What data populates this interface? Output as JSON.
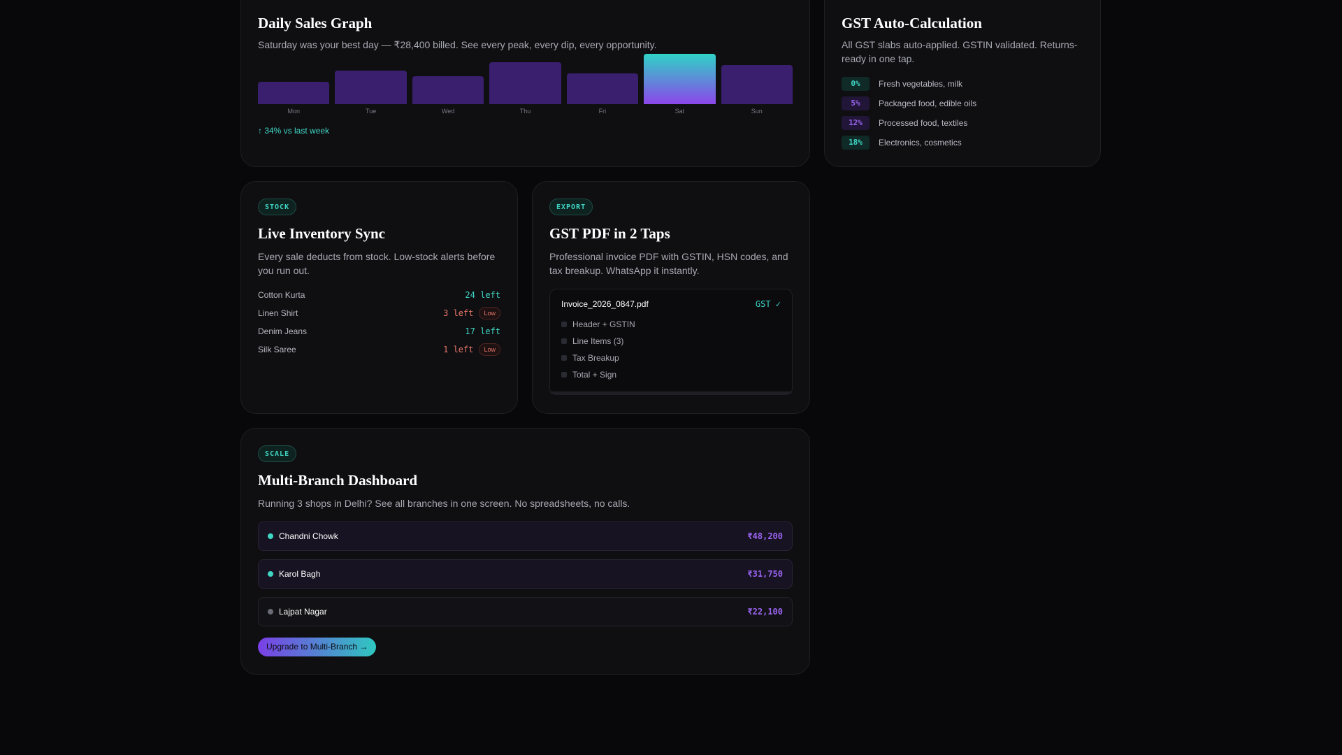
{
  "sales": {
    "title": "Daily Sales Graph",
    "description": "Saturday was your best day — ₹28,400 billed. See every peak, every dip, every opportunity.",
    "trend": "↑ 34% vs last week",
    "chart_data": {
      "type": "bar",
      "categories": [
        "Mon",
        "Tue",
        "Wed",
        "Thu",
        "Fri",
        "Sat",
        "Sun"
      ],
      "values": [
        32,
        48,
        40,
        60,
        44,
        72,
        56
      ],
      "highlight": "Sat"
    }
  },
  "gst": {
    "title": "GST Auto-Calculation",
    "description": "All GST slabs auto-applied. GSTIN validated. Returns-ready in one tap.",
    "slabs": [
      {
        "pct": "0%",
        "label": "Fresh vegetables, milk"
      },
      {
        "pct": "5%",
        "label": "Packaged food, edible oils"
      },
      {
        "pct": "12%",
        "label": "Processed food, textiles"
      },
      {
        "pct": "18%",
        "label": "Electronics, cosmetics"
      }
    ]
  },
  "inventory": {
    "tag": "STOCK",
    "title": "Live Inventory Sync",
    "description": "Every sale deducts from stock. Low-stock alerts before you run out.",
    "low_label": "Low",
    "items": [
      {
        "name": "Cotton Kurta",
        "qty": "24 left"
      },
      {
        "name": "Linen Shirt",
        "qty": "3 left"
      },
      {
        "name": "Denim Jeans",
        "qty": "17 left"
      },
      {
        "name": "Silk Saree",
        "qty": "1 left"
      }
    ]
  },
  "export": {
    "tag": "EXPORT",
    "title": "GST PDF in 2 Taps",
    "description": "Professional invoice PDF with GSTIN, HSN codes, and tax breakup. WhatsApp it instantly.",
    "file": "Invoice_2026_0847.pdf",
    "badge": "GST ✓",
    "sections": [
      "Header + GSTIN",
      "Line Items (3)",
      "Tax Breakup",
      "Total + Sign"
    ]
  },
  "scale": {
    "tag": "SCALE",
    "title": "Multi-Branch Dashboard",
    "description": "Running 3 shops in Delhi? See all branches in one screen. No spreadsheets, no calls.",
    "branches": [
      {
        "name": "Chandni Chowk",
        "amount": "₹48,200"
      },
      {
        "name": "Karol Bagh",
        "amount": "₹31,750"
      },
      {
        "name": "Lajpat Nagar",
        "amount": "₹22,100"
      }
    ],
    "cta": "Upgrade to Multi-Branch →"
  }
}
